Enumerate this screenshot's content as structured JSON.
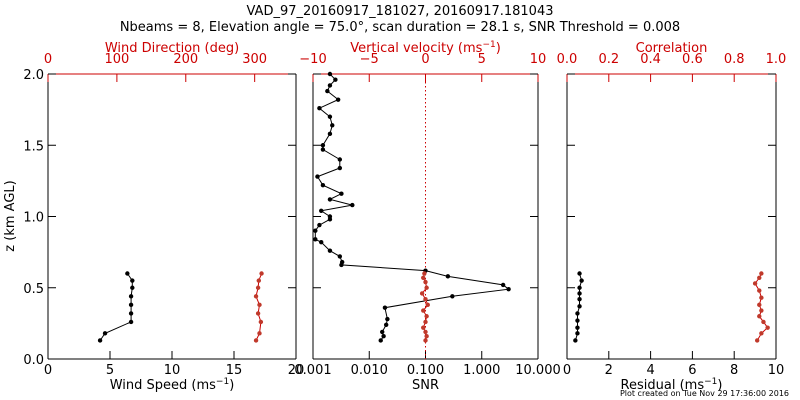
{
  "title_line1": "VAD_97_20160917_181027, 20160917.181043",
  "title_line2": "Nbeams = 8, Elevation angle = 75.0°, scan duration = 28.1 s, SNR Threshold = 0.008",
  "footer": "Plot created on Tue Nov 29 17:36:00 2016",
  "colors": {
    "primary": "#000000",
    "secondary": "#cc0000",
    "secondary_marker": "#c0392b"
  },
  "chart_data": [
    {
      "type": "line",
      "y_label": "z (km AGL)",
      "ylim": [
        0,
        2
      ],
      "y_ticks": [
        "0.0",
        "0.5",
        "1.0",
        "1.5",
        "2.0"
      ],
      "bottom_axis": {
        "label": "Wind Speed (ms",
        "sup": "−1",
        "tail": ")",
        "lim": [
          0,
          20
        ],
        "ticks": [
          "0",
          "5",
          "10",
          "15",
          "20"
        ]
      },
      "top_axis": {
        "label": "Wind Direction (deg)",
        "lim": [
          0,
          360
        ],
        "ticks": [
          "0",
          "100",
          "200",
          "300"
        ]
      },
      "series": [
        {
          "axis": "bottom",
          "z": [
            0.13,
            0.18,
            0.26,
            0.32,
            0.38,
            0.44,
            0.5,
            0.55,
            0.6
          ],
          "values": [
            4.2,
            4.6,
            6.7,
            6.7,
            6.7,
            6.7,
            6.8,
            6.8,
            6.4
          ]
        },
        {
          "axis": "top",
          "z": [
            0.13,
            0.18,
            0.26,
            0.32,
            0.38,
            0.44,
            0.5,
            0.55,
            0.6
          ],
          "values": [
            302,
            307,
            309,
            305,
            307,
            302,
            305,
            306,
            310
          ]
        }
      ]
    },
    {
      "type": "line",
      "bottom_axis": {
        "label": "SNR",
        "sup": "",
        "tail": "",
        "scale": "log",
        "lim": [
          0.001,
          10
        ],
        "ticks": [
          "0.001",
          "0.010",
          "0.100",
          "1.000",
          "10.000"
        ]
      },
      "top_axis": {
        "label": "Vertical velocity (ms",
        "sup": "−1",
        "tail": ")",
        "lim": [
          -10,
          10
        ],
        "ticks": [
          "−10",
          "−5",
          "0",
          "5",
          "10"
        ],
        "reference_line": 0
      },
      "series": [
        {
          "axis": "bottom",
          "z": [
            0.13,
            0.16,
            0.19,
            0.24,
            0.28,
            0.36,
            0.44,
            0.49,
            0.52,
            0.58,
            0.62,
            0.66,
            0.68,
            0.72,
            0.76,
            0.82,
            0.84,
            0.9,
            0.94,
            0.98,
            1.0,
            1.04,
            1.08,
            1.12,
            1.16,
            1.22,
            1.28,
            1.34,
            1.4,
            1.47,
            1.5,
            1.58,
            1.64,
            1.7,
            1.76,
            1.82,
            1.88,
            1.92,
            1.96,
            2.0
          ],
          "values": [
            0.016,
            0.018,
            0.017,
            0.02,
            0.021,
            0.019,
            0.3,
            3.0,
            2.4,
            0.25,
            0.1,
            0.0032,
            0.0033,
            0.003,
            0.002,
            0.0014,
            0.0011,
            0.0011,
            0.0013,
            0.002,
            0.002,
            0.0014,
            0.005,
            0.002,
            0.0032,
            0.0015,
            0.0012,
            0.003,
            0.003,
            0.0015,
            0.0015,
            0.002,
            0.0022,
            0.002,
            0.0013,
            0.0028,
            0.0018,
            0.002,
            0.0025,
            0.002
          ]
        },
        {
          "axis": "top",
          "z": [
            0.13,
            0.16,
            0.19,
            0.22,
            0.26,
            0.3,
            0.34,
            0.38,
            0.42,
            0.46,
            0.5,
            0.54,
            0.57,
            0.6
          ],
          "values": [
            0.0,
            0.1,
            0.0,
            -0.2,
            0.0,
            0.1,
            -0.2,
            0.2,
            0.0,
            -0.3,
            0.1,
            0.0,
            -0.2,
            -0.1
          ]
        }
      ]
    },
    {
      "type": "line",
      "bottom_axis": {
        "label": "Residual (ms",
        "sup": "−1",
        "tail": ")",
        "lim": [
          0,
          10
        ],
        "ticks": [
          "0",
          "2",
          "4",
          "6",
          "8",
          "10"
        ]
      },
      "top_axis": {
        "label": "Correlation",
        "lim": [
          0,
          1
        ],
        "ticks": [
          "0.0",
          "0.2",
          "0.4",
          "0.6",
          "0.8",
          "1.0"
        ]
      },
      "series": [
        {
          "axis": "bottom",
          "z": [
            0.13,
            0.18,
            0.22,
            0.27,
            0.32,
            0.37,
            0.42,
            0.46,
            0.5,
            0.55,
            0.6
          ],
          "values": [
            0.4,
            0.5,
            0.5,
            0.5,
            0.5,
            0.6,
            0.6,
            0.6,
            0.6,
            0.7,
            0.6
          ]
        },
        {
          "axis": "top",
          "z": [
            0.13,
            0.18,
            0.22,
            0.26,
            0.3,
            0.34,
            0.38,
            0.43,
            0.48,
            0.53,
            0.57,
            0.6
          ],
          "values": [
            0.91,
            0.93,
            0.96,
            0.94,
            0.92,
            0.93,
            0.92,
            0.93,
            0.92,
            0.9,
            0.92,
            0.93
          ]
        }
      ]
    }
  ]
}
